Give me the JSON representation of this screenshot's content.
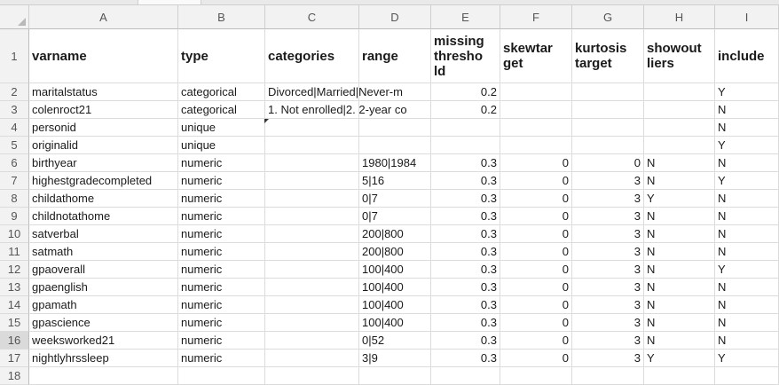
{
  "columns": [
    "A",
    "B",
    "C",
    "D",
    "E",
    "F",
    "G",
    "H",
    "I"
  ],
  "header_row": {
    "number": "1",
    "cells": [
      "varname",
      "type",
      "categories",
      "range",
      "missing thresho ld",
      "skewtar get",
      "kurtosis target",
      "showout liers",
      "include"
    ]
  },
  "rows": [
    {
      "n": "2",
      "c": [
        "maritalstatus",
        "categorical",
        "Divorced|Married|Never-m",
        "",
        "0.2",
        "",
        "",
        "",
        "Y"
      ]
    },
    {
      "n": "3",
      "c": [
        "colenroct21",
        "categorical",
        "1. Not enrolled|2. 2-year co",
        "",
        "0.2",
        "",
        "",
        "",
        "N"
      ]
    },
    {
      "n": "4",
      "c": [
        "personid",
        "unique",
        "",
        "",
        "",
        "",
        "",
        "",
        "N"
      ]
    },
    {
      "n": "5",
      "c": [
        "originalid",
        "unique",
        "",
        "",
        "",
        "",
        "",
        "",
        "Y"
      ]
    },
    {
      "n": "6",
      "c": [
        "birthyear",
        "numeric",
        "",
        "1980|1984",
        "0.3",
        "0",
        "0",
        "N",
        "N"
      ]
    },
    {
      "n": "7",
      "c": [
        "highestgradecompleted",
        "numeric",
        "",
        "5|16",
        "0.3",
        "0",
        "3",
        "N",
        "Y"
      ]
    },
    {
      "n": "8",
      "c": [
        "childathome",
        "numeric",
        "",
        "0|7",
        "0.3",
        "0",
        "3",
        "Y",
        "N"
      ]
    },
    {
      "n": "9",
      "c": [
        "childnotathome",
        "numeric",
        "",
        "0|7",
        "0.3",
        "0",
        "3",
        "N",
        "N"
      ]
    },
    {
      "n": "10",
      "c": [
        "satverbal",
        "numeric",
        "",
        "200|800",
        "0.3",
        "0",
        "3",
        "N",
        "N"
      ]
    },
    {
      "n": "11",
      "c": [
        "satmath",
        "numeric",
        "",
        "200|800",
        "0.3",
        "0",
        "3",
        "N",
        "N"
      ]
    },
    {
      "n": "12",
      "c": [
        "gpaoverall",
        "numeric",
        "",
        "100|400",
        "0.3",
        "0",
        "3",
        "N",
        "Y"
      ]
    },
    {
      "n": "13",
      "c": [
        "gpaenglish",
        "numeric",
        "",
        "100|400",
        "0.3",
        "0",
        "3",
        "N",
        "N"
      ]
    },
    {
      "n": "14",
      "c": [
        "gpamath",
        "numeric",
        "",
        "100|400",
        "0.3",
        "0",
        "3",
        "N",
        "N"
      ]
    },
    {
      "n": "15",
      "c": [
        "gpascience",
        "numeric",
        "",
        "100|400",
        "0.3",
        "0",
        "3",
        "N",
        "N"
      ]
    },
    {
      "n": "16",
      "c": [
        "weeksworked21",
        "numeric",
        "",
        "0|52",
        "0.3",
        "0",
        "3",
        "N",
        "N"
      ]
    },
    {
      "n": "17",
      "c": [
        "nightlyhrssleep",
        "numeric",
        "",
        "3|9",
        "0.3",
        "0",
        "3",
        "Y",
        "Y"
      ]
    },
    {
      "n": "18",
      "c": [
        "",
        "",
        "",
        "",
        "",
        "",
        "",
        "",
        ""
      ]
    }
  ],
  "selected_row": "16"
}
